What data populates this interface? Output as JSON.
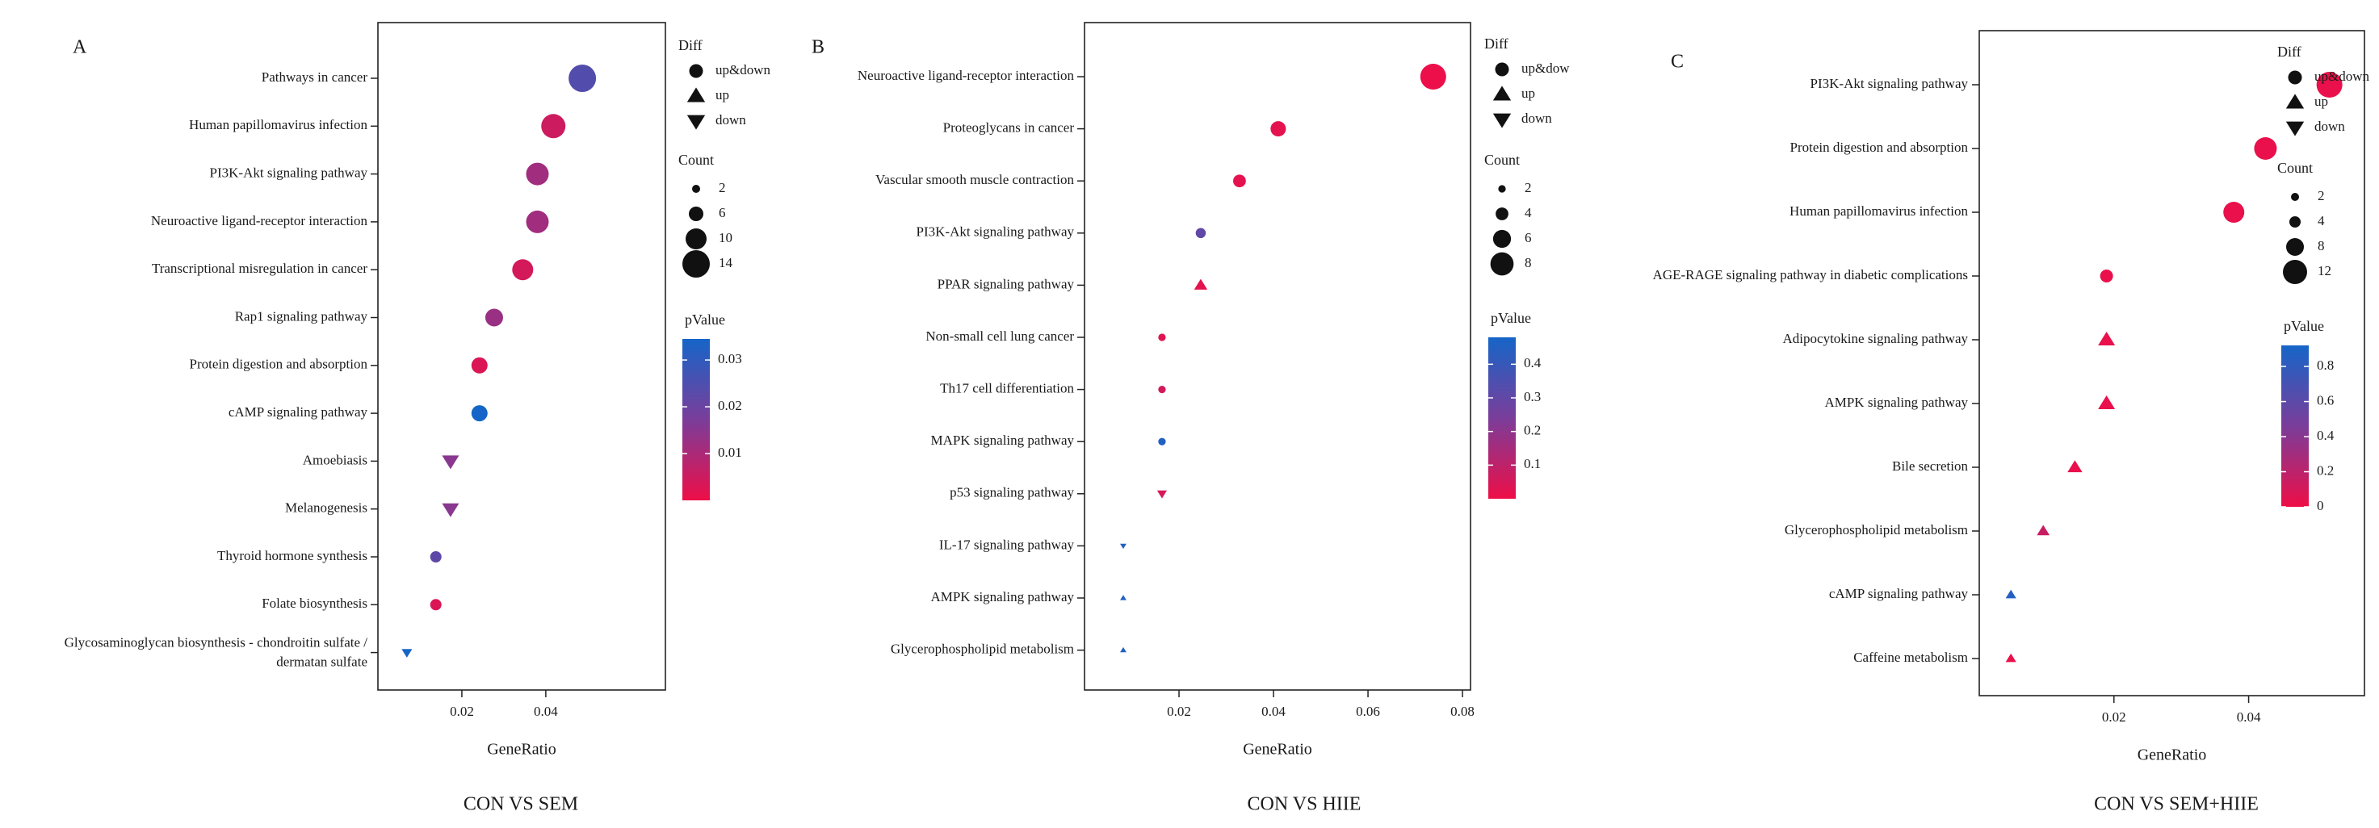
{
  "chart_data": [
    {
      "panel": "A",
      "type": "scatter",
      "caption": "CON VS SEM",
      "xlabel": "GeneRatio",
      "xticks": [
        "0.02",
        "0.04"
      ],
      "xlim": [
        0.0,
        0.0685
      ],
      "points": [
        {
          "term": "Pathways in cancer",
          "x": 0.0487,
          "count": 14,
          "p": 0.024,
          "diff": "up&down"
        },
        {
          "term": "Human papillomavirus infection",
          "x": 0.0418,
          "count": 12,
          "p": 0.005,
          "diff": "up&down"
        },
        {
          "term": "PI3K-Akt signaling pathway",
          "x": 0.038,
          "count": 11,
          "p": 0.0115,
          "diff": "up&down"
        },
        {
          "term": "Neuroactive ligand-receptor interaction",
          "x": 0.038,
          "count": 11,
          "p": 0.0115,
          "diff": "up&down"
        },
        {
          "term": "Transcriptional misregulation in cancer",
          "x": 0.0345,
          "count": 10,
          "p": 0.004,
          "diff": "up&down"
        },
        {
          "term": "Rap1 signaling pathway",
          "x": 0.0277,
          "count": 8,
          "p": 0.0125,
          "diff": "up&down"
        },
        {
          "term": "Protein digestion and absorption",
          "x": 0.0242,
          "count": 7,
          "p": 0.003,
          "diff": "up&down"
        },
        {
          "term": "cAMP signaling pathway",
          "x": 0.0242,
          "count": 7,
          "p": 0.035,
          "diff": "up&down"
        },
        {
          "term": "Amoebiasis",
          "x": 0.0173,
          "count": 5,
          "p": 0.015,
          "diff": "down"
        },
        {
          "term": "Melanogenesis",
          "x": 0.0173,
          "count": 5,
          "p": 0.015,
          "diff": "down"
        },
        {
          "term": "Thyroid hormone synthesis",
          "x": 0.0138,
          "count": 4,
          "p": 0.022,
          "diff": "up&down"
        },
        {
          "term": "Folate biosynthesis",
          "x": 0.0138,
          "count": 4,
          "p": 0.003,
          "diff": "up&down"
        },
        {
          "term": "Glycosaminoglycan biosynthesis - chondroitin sulfate / dermatan sulfate",
          "x": 0.0069,
          "count": 2,
          "p": 0.035,
          "diff": "down"
        }
      ],
      "legend": {
        "diff_title": "Diff",
        "diff_items": [
          {
            "shape": "circle",
            "label": "up&down"
          },
          {
            "shape": "triangle-up",
            "label": "up"
          },
          {
            "shape": "triangle-down",
            "label": "down"
          }
        ],
        "count_title": "Count",
        "count_items": [
          2,
          6,
          10,
          14
        ],
        "count_range": [
          2,
          14
        ],
        "pvalue_title": "pValue",
        "pvalue_range": [
          0.0,
          0.0345
        ],
        "pvalue_ticks": [
          0.01,
          0.02,
          0.03
        ],
        "pvalue_tick_labels": [
          "0.01",
          "0.02",
          "0.03"
        ],
        "bar_min_label_value": 0.004
      }
    },
    {
      "panel": "B",
      "type": "scatter",
      "caption": "CON VS HIIE",
      "xlabel": "GeneRatio",
      "xticks": [
        "0.02",
        "0.04",
        "0.06",
        "0.08"
      ],
      "xlim": [
        0.0,
        0.0817
      ],
      "points": [
        {
          "term": "Neuroactive ligand-receptor interaction",
          "x": 0.0738,
          "count": 9,
          "p": 0.005,
          "diff": "up&down"
        },
        {
          "term": "Proteoglycans in cancer",
          "x": 0.041,
          "count": 5,
          "p": 0.02,
          "diff": "up&down"
        },
        {
          "term": "Vascular smooth muscle contraction",
          "x": 0.0328,
          "count": 4,
          "p": 0.02,
          "diff": "up&down"
        },
        {
          "term": "PI3K-Akt signaling pathway",
          "x": 0.0246,
          "count": 3,
          "p": 0.3,
          "diff": "up&down"
        },
        {
          "term": "PPAR signaling pathway",
          "x": 0.0246,
          "count": 3,
          "p": 0.02,
          "diff": "up"
        },
        {
          "term": "Non-small cell lung cancer",
          "x": 0.0164,
          "count": 2,
          "p": 0.03,
          "diff": "up&down"
        },
        {
          "term": "Th17 cell differentiation",
          "x": 0.0164,
          "count": 2,
          "p": 0.06,
          "diff": "up&down"
        },
        {
          "term": "MAPK signaling pathway",
          "x": 0.0164,
          "count": 2,
          "p": 0.45,
          "diff": "up&down"
        },
        {
          "term": "p53 signaling pathway",
          "x": 0.0164,
          "count": 2,
          "p": 0.05,
          "diff": "down"
        },
        {
          "term": "IL-17 signaling pathway",
          "x": 0.0082,
          "count": 1,
          "p": 0.45,
          "diff": "down"
        },
        {
          "term": "AMPK signaling pathway",
          "x": 0.0082,
          "count": 1,
          "p": 0.45,
          "diff": "up"
        },
        {
          "term": "Glycerophospholipid metabolism",
          "x": 0.0082,
          "count": 1,
          "p": 0.45,
          "diff": "up"
        }
      ],
      "legend": {
        "diff_title": "Diff",
        "diff_items": [
          {
            "shape": "circle",
            "label": "up&dow"
          },
          {
            "shape": "triangle-up",
            "label": "up"
          },
          {
            "shape": "triangle-down",
            "label": "down"
          }
        ],
        "count_title": "Count",
        "count_items": [
          2,
          4,
          6,
          8
        ],
        "count_range": [
          1,
          9
        ],
        "pvalue_title": "pValue",
        "pvalue_range": [
          0.0,
          0.48
        ],
        "pvalue_ticks": [
          0.1,
          0.2,
          0.3,
          0.4
        ],
        "pvalue_tick_labels": [
          "0.1",
          "0.2",
          "0.3",
          "0.4"
        ],
        "bar_min_label_value": 0.02
      }
    },
    {
      "panel": "C",
      "type": "scatter",
      "caption": "CON VS SEM+HIIE",
      "xlabel": "GeneRatio",
      "xticks": [
        "0.02",
        "0.04"
      ],
      "xlim": [
        0.0,
        0.0572
      ],
      "points": [
        {
          "term": "PI3K-Akt signaling pathway",
          "x": 0.052,
          "count": 13,
          "p": 0.02,
          "diff": "up&down"
        },
        {
          "term": "Protein digestion and absorption",
          "x": 0.0425,
          "count": 11,
          "p": 0.02,
          "diff": "up&down"
        },
        {
          "term": "Human papillomavirus infection",
          "x": 0.0378,
          "count": 10,
          "p": 0.02,
          "diff": "up&down"
        },
        {
          "term": "AGE-RAGE signaling pathway in diabetic complications",
          "x": 0.0189,
          "count": 5,
          "p": 0.02,
          "diff": "up&down"
        },
        {
          "term": "Adipocytokine signaling pathway",
          "x": 0.0189,
          "count": 5,
          "p": 0.02,
          "diff": "up"
        },
        {
          "term": "AMPK signaling pathway",
          "x": 0.0189,
          "count": 5,
          "p": 0.02,
          "diff": "up"
        },
        {
          "term": "Bile secretion",
          "x": 0.0142,
          "count": 4,
          "p": 0.02,
          "diff": "up"
        },
        {
          "term": "Glycerophospholipid metabolism",
          "x": 0.0095,
          "count": 3,
          "p": 0.15,
          "diff": "up"
        },
        {
          "term": "cAMP signaling pathway",
          "x": 0.0047,
          "count": 2,
          "p": 0.85,
          "diff": "up"
        },
        {
          "term": "Caffeine metabolism",
          "x": 0.0047,
          "count": 2,
          "p": 0.02,
          "diff": "up"
        }
      ],
      "legend": {
        "diff_title": "Diff",
        "diff_items": [
          {
            "shape": "circle",
            "label": "up&down"
          },
          {
            "shape": "triangle-up",
            "label": "up"
          },
          {
            "shape": "triangle-down",
            "label": "down"
          }
        ],
        "count_title": "Count",
        "count_items": [
          2,
          4,
          8,
          12
        ],
        "count_range": [
          2,
          13
        ],
        "pvalue_title": "pValue",
        "pvalue_range": [
          0.0,
          0.92
        ],
        "pvalue_ticks": [
          0,
          0.2,
          0.4,
          0.6,
          0.8
        ],
        "pvalue_tick_labels": [
          "0",
          "0.2",
          "0.4",
          "0.6",
          "0.8"
        ],
        "bar_min_label_value": 0.0
      }
    }
  ],
  "colors": {
    "low_p": "#ee0e47",
    "high_p": "#1565c8",
    "mid_p": "#7a3d9a"
  }
}
